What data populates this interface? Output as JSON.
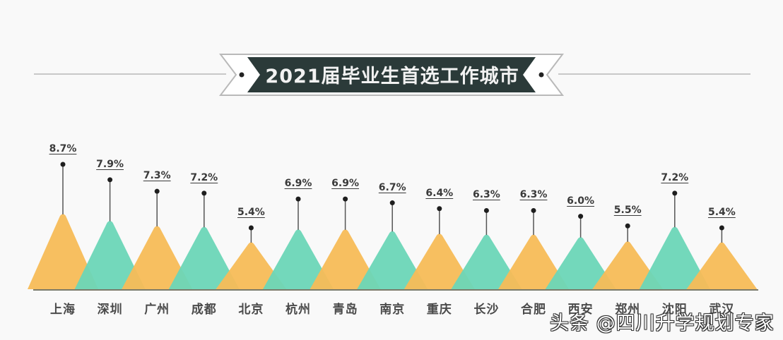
{
  "header": {
    "title": "2021届毕业生首选工作城市"
  },
  "colors": {
    "orange": "#f7bc57",
    "teal": "#6cd6b7",
    "banner_dark": "#2b3a39",
    "baseline": "#7a7a6a",
    "stem": "#555555",
    "title_line": "#c8c8c8"
  },
  "watermark": "头条 @四川升学规划专家",
  "chart_data": {
    "type": "bar",
    "title": "2021届毕业生首选工作城市",
    "xlabel": "",
    "ylabel": "",
    "bar_shape": "triangle",
    "categories": [
      "上海",
      "深圳",
      "广州",
      "成都",
      "北京",
      "杭州",
      "青岛",
      "南京",
      "重庆",
      "长沙",
      "合肥",
      "西安",
      "郑州",
      "沈阳",
      "武汉"
    ],
    "values": [
      8.7,
      7.9,
      7.3,
      7.2,
      5.4,
      6.9,
      6.9,
      6.7,
      6.4,
      6.3,
      6.3,
      6.0,
      5.5,
      7.2,
      5.4
    ],
    "value_labels": [
      "8.7%",
      "7.9%",
      "7.3%",
      "7.2%",
      "5.4%",
      "6.9%",
      "6.9%",
      "6.7%",
      "6.4%",
      "6.3%",
      "6.3%",
      "6.0%",
      "5.5%",
      "7.2%",
      "5.4%"
    ],
    "unit": "%",
    "colors": [
      "orange",
      "teal",
      "orange",
      "teal",
      "orange",
      "teal",
      "orange",
      "teal",
      "orange",
      "teal",
      "orange",
      "teal",
      "orange",
      "teal",
      "orange"
    ],
    "grid": false,
    "legend": null
  }
}
